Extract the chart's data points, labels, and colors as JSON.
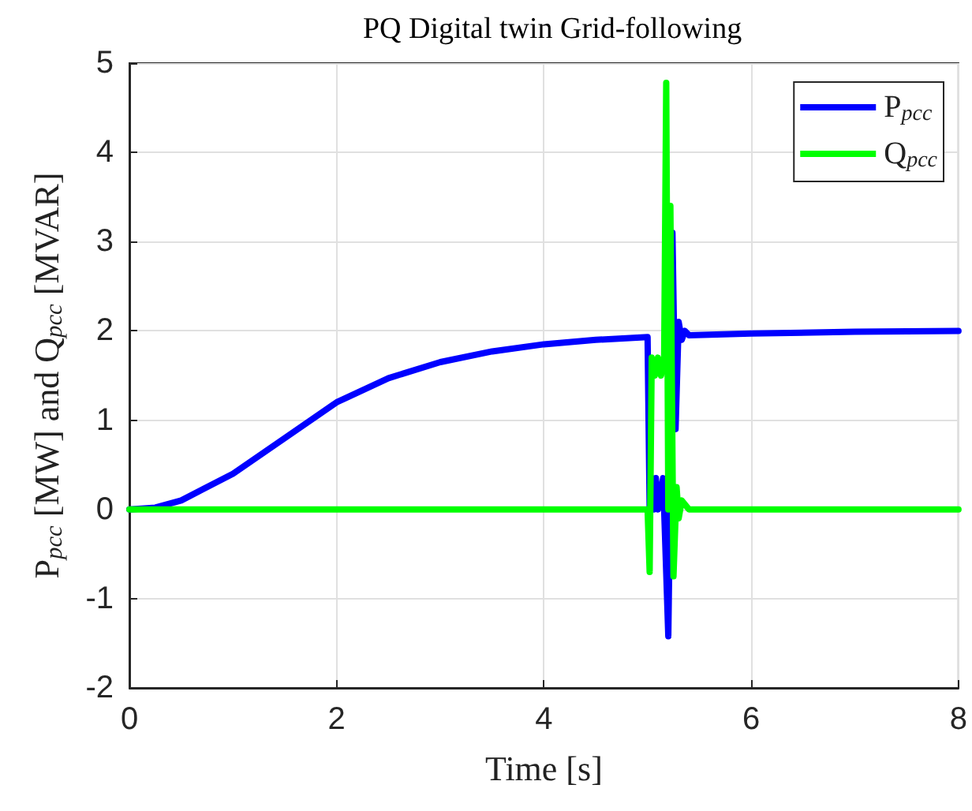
{
  "chart_data": {
    "type": "line",
    "title": "PQ Digital twin Grid-following",
    "xlabel": "Time [s]",
    "ylabel": "P$_{pcc}$ [MW] and Q$_{pcc}$ [MVAR]",
    "xlim": [
      0,
      8
    ],
    "xticks": [
      0,
      2,
      4,
      6,
      8
    ],
    "ylim": [
      -2,
      5
    ],
    "yticks": [
      -2,
      -1,
      0,
      1,
      2,
      3,
      4,
      5
    ],
    "grid": true,
    "legend": "top right",
    "marker": "none",
    "line_style": "solid",
    "series": [
      {
        "name": "P$_{pcc}$",
        "color": "#0000ff",
        "x": [
          0,
          0.25,
          0.5,
          1,
          1.5,
          2,
          2.5,
          3,
          3.5,
          4,
          4.5,
          5.0,
          5.01,
          5.02,
          5.04,
          5.06,
          5.08,
          5.1,
          5.15,
          5.2,
          5.22,
          5.24,
          5.27,
          5.3,
          5.33,
          5.36,
          5.4,
          6,
          7,
          8
        ],
        "values": [
          0,
          0.02,
          0.1,
          0.4,
          0.8,
          1.2,
          1.47,
          1.65,
          1.77,
          1.85,
          1.9,
          1.93,
          1.93,
          0,
          0.35,
          0,
          0.35,
          0,
          0.35,
          -1.42,
          0.35,
          3.1,
          0.9,
          2.1,
          1.9,
          2.0,
          1.95,
          1.97,
          1.99,
          2.0
        ]
      },
      {
        "name": "Q$_{pcc}$",
        "color": "#00ff00",
        "x": [
          0,
          5.0,
          5.02,
          5.04,
          5.07,
          5.1,
          5.13,
          5.16,
          5.18,
          5.2,
          5.22,
          5.25,
          5.28,
          5.3,
          5.33,
          5.4,
          8
        ],
        "values": [
          0,
          0,
          -0.7,
          1.7,
          1.5,
          1.7,
          1.5,
          1.7,
          4.78,
          0,
          3.4,
          -0.75,
          0.25,
          -0.1,
          0.1,
          0,
          0
        ]
      }
    ]
  }
}
